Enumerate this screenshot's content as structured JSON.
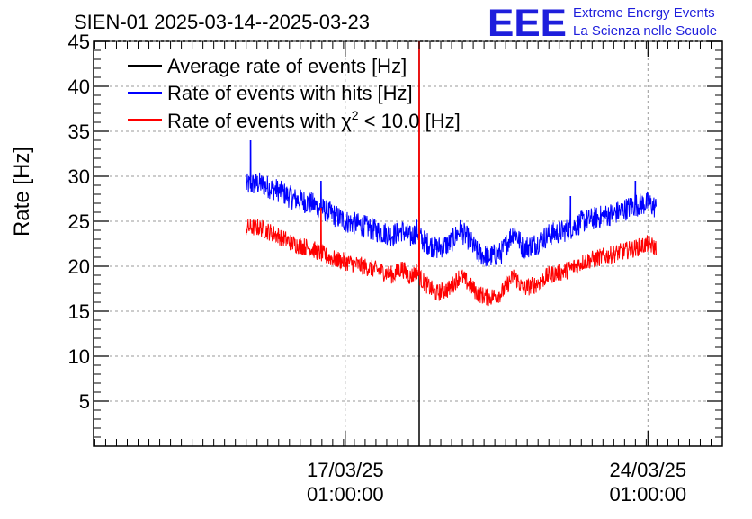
{
  "chart_data": {
    "type": "line",
    "title": "SIEN-01 2025-03-14--2025-03-23",
    "ylabel": "Rate [Hz]",
    "xlabel": "",
    "ylim": [
      0,
      45
    ],
    "yticks": [
      5,
      10,
      15,
      20,
      25,
      30,
      35,
      40,
      45
    ],
    "xlim_days_since_start": [
      -3.53,
      11.01
    ],
    "xticks": [
      {
        "day": 2.29,
        "line1": "17/03/25",
        "line2": "01:00:00"
      },
      {
        "day": 9.29,
        "line1": "24/03/25",
        "line2": "01:00:00"
      }
    ],
    "grid": true,
    "legend_position": "top-left",
    "logo": {
      "mark": "EEE",
      "line1": "Extreme Energy Events",
      "line2": "La Scienza nelle Scuole"
    },
    "series": [
      {
        "name": "Average rate of events [Hz]",
        "label_main": "Average rate of events [Hz]",
        "color": "#000000",
        "x_days": [
          4.0,
          4.0
        ],
        "values": [
          0.0,
          45.0
        ]
      },
      {
        "name": "Rate of events with hits [Hz]",
        "label_main": "Rate of events with hits [Hz]",
        "color": "#0000ff",
        "noise": 1.3,
        "x_days": [
          0.0,
          0.3,
          0.7,
          1.1,
          1.5,
          1.9,
          2.3,
          2.7,
          3.1,
          3.4,
          3.6,
          3.8,
          3.95,
          4.05,
          4.2,
          4.4,
          4.7,
          4.95,
          5.15,
          5.35,
          5.6,
          5.9,
          6.2,
          6.4,
          6.7,
          7.0,
          7.4,
          7.8,
          8.2,
          8.6,
          9.0,
          9.3,
          9.48
        ],
        "values": [
          29.0,
          29.2,
          28.5,
          27.5,
          27.0,
          26.0,
          25.0,
          24.5,
          23.8,
          23.5,
          24.0,
          23.2,
          24.0,
          23.0,
          22.5,
          22.0,
          22.5,
          24.0,
          23.0,
          21.5,
          21.0,
          21.5,
          24.0,
          22.0,
          22.5,
          23.5,
          24.0,
          25.0,
          25.5,
          26.0,
          26.8,
          27.0,
          26.5
        ],
        "spikes": [
          {
            "x": 0.1,
            "y": 34.0
          },
          {
            "x": 1.73,
            "y": 29.5
          },
          {
            "x": 7.5,
            "y": 27.8
          },
          {
            "x": 9.0,
            "y": 29.5
          }
        ]
      },
      {
        "name": "Rate of events with chi2 < 10.0 [Hz]",
        "label_main": "Rate of events with χ",
        "label_sup": "2",
        "label_rest": " < 10.0 [Hz]",
        "color": "#ff0000",
        "noise": 1.0,
        "x_days": [
          0.0,
          0.3,
          0.7,
          1.1,
          1.5,
          1.9,
          2.3,
          2.7,
          3.1,
          3.4,
          3.6,
          3.8,
          3.95,
          4.05,
          4.2,
          4.4,
          4.7,
          4.95,
          5.15,
          5.35,
          5.6,
          5.9,
          6.2,
          6.4,
          6.7,
          7.0,
          7.4,
          7.8,
          8.2,
          8.6,
          9.0,
          9.3,
          9.48
        ],
        "values": [
          24.3,
          24.3,
          23.5,
          22.5,
          22.0,
          21.0,
          20.5,
          20.0,
          19.5,
          19.0,
          19.8,
          18.8,
          19.5,
          18.5,
          17.8,
          17.0,
          17.5,
          19.0,
          18.0,
          17.0,
          16.5,
          17.0,
          19.0,
          17.5,
          18.0,
          19.0,
          19.5,
          20.5,
          21.0,
          21.5,
          22.0,
          22.5,
          22.0
        ],
        "spikes": [
          {
            "x": 1.73,
            "y": 26.5
          },
          {
            "x": 4.0,
            "y": 45.0
          }
        ]
      }
    ]
  }
}
